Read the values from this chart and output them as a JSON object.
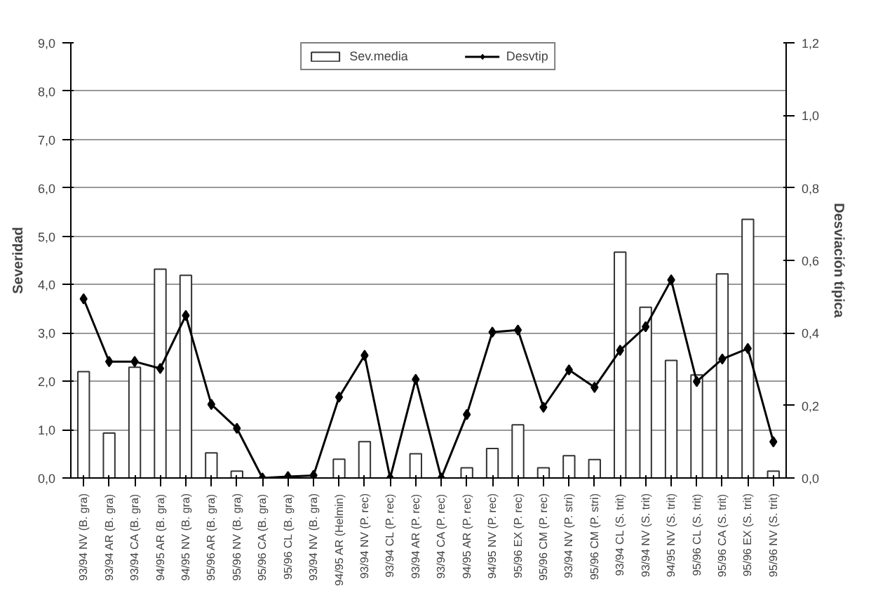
{
  "chart_data": {
    "type": "bar",
    "ylabel": "Severidad",
    "y2label": "Desviación típica",
    "categories": [
      "93/94 NV (B. gra)",
      "93/94 AR (B. gra)",
      "93/94 CA (B. gra)",
      "94/95 AR (B. gra)",
      "94/95 NV (B. gra)",
      "95/96 AR (B. gra)",
      "95/96 NV (B. gra)",
      "95/96 CA (B. gra)",
      "95/96 CL (B. gra)",
      "93/94 NV (B. gra)",
      "94/95 AR (Helmin)",
      "93/94 NV (P. rec)",
      "93/94 CL (P. rec)",
      "93/94 AR (P. rec)",
      "93/94 CA (P. rec)",
      "94/95 AR (P. rec)",
      "94/95 NV (P. rec)",
      "95/96 EX (P. rec)",
      "95/96 CM (P. rec)",
      "93/94 NV (P. stri)",
      "95/96 CM (P. stri)",
      "93/94 CL (S. trit)",
      "93/94 NV (S. trit)",
      "94/95 NV (S. trit)",
      "95/96 CL (S. trit)",
      "95/96 CA (S. trit)",
      "95/96 EX (S. trit)",
      "95/96 NV (S. trit)"
    ],
    "series": [
      {
        "name": "Sev.media",
        "color": "#ffffff",
        "values": [
          2.2,
          0.93,
          2.29,
          4.32,
          4.19,
          0.52,
          0.14,
          0,
          0,
          0,
          0.39,
          0.75,
          0,
          0.5,
          0,
          0.21,
          0.61,
          1.1,
          0.21,
          0.46,
          0.38,
          4.67,
          3.53,
          2.43,
          2.13,
          4.22,
          5.35,
          0.14
        ]
      },
      {
        "name": "Desvtip",
        "type": "line",
        "axis": "y2",
        "color": "#000000",
        "marker": "diamond",
        "values": [
          0.494,
          0.321,
          0.321,
          0.302,
          0.448,
          0.203,
          0.137,
          0,
          0.004,
          0.007,
          0.223,
          0.338,
          0,
          0.272,
          0,
          0.175,
          0.402,
          0.408,
          0.195,
          0.298,
          0.25,
          0.352,
          0.417,
          0.546,
          0.266,
          0.328,
          0.357,
          0.1
        ]
      }
    ],
    "ylim": [
      0,
      9
    ],
    "yticks": [
      {
        "value": 0,
        "label": "0,0"
      },
      {
        "value": 1,
        "label": "1,0"
      },
      {
        "value": 2,
        "label": "2,0"
      },
      {
        "value": 3,
        "label": "3,0"
      },
      {
        "value": 4,
        "label": "4,0"
      },
      {
        "value": 5,
        "label": "5,0"
      },
      {
        "value": 6,
        "label": "6,0"
      },
      {
        "value": 7,
        "label": "7,0"
      },
      {
        "value": 8,
        "label": "8,0"
      },
      {
        "value": 9,
        "label": "9,0"
      }
    ],
    "y2lim": [
      0,
      1.2
    ],
    "y2ticks": [
      {
        "value": 0,
        "label": "0,0"
      },
      {
        "value": 0.2,
        "label": "0,2"
      },
      {
        "value": 0.4,
        "label": "0,4"
      },
      {
        "value": 0.6,
        "label": "0,6"
      },
      {
        "value": 0.8,
        "label": "0,8"
      },
      {
        "value": 1.0,
        "label": "1,0"
      },
      {
        "value": 1.2,
        "label": "1,2"
      }
    ],
    "grid": "y",
    "legend": "top"
  }
}
